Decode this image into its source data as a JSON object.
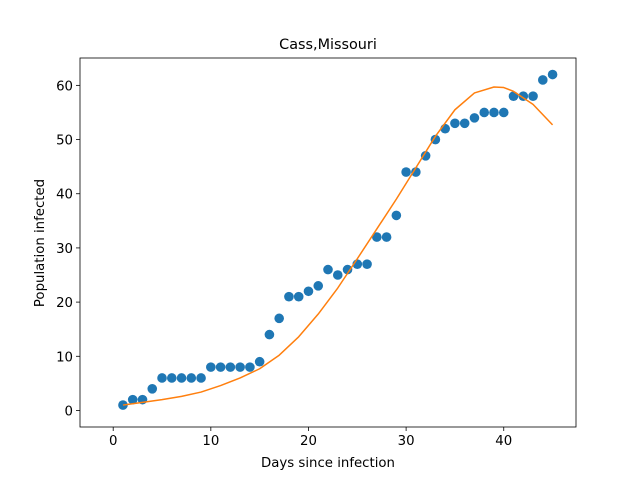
{
  "chart_data": {
    "type": "scatter",
    "title": "Cass,Missouri",
    "xlabel": "Days since infection",
    "ylabel": "Population infected",
    "xlim": [
      -3.4,
      47.4
    ],
    "ylim": [
      -3.05,
      65.05
    ],
    "xticks": [
      0,
      10,
      20,
      30,
      40
    ],
    "yticks": [
      0,
      10,
      20,
      30,
      40,
      50,
      60
    ],
    "grid": false,
    "series": [
      {
        "kind": "scatter",
        "color": "#1f77b4",
        "x": [
          1,
          2,
          3,
          4,
          5,
          6,
          7,
          8,
          9,
          10,
          11,
          12,
          13,
          14,
          15,
          16,
          17,
          18,
          19,
          20,
          21,
          22,
          23,
          24,
          25,
          26,
          27,
          28,
          29,
          30,
          31,
          32,
          33,
          34,
          35,
          36,
          37,
          38,
          39,
          40,
          41,
          42,
          43,
          44,
          45
        ],
        "y": [
          1,
          2,
          2,
          4,
          6,
          6,
          6,
          6,
          6,
          8,
          8,
          8,
          8,
          8,
          9,
          14,
          17,
          21,
          21,
          22,
          23,
          26,
          25,
          26,
          27,
          27,
          32,
          32,
          36,
          44,
          44,
          47,
          50,
          52,
          53,
          53,
          54,
          55,
          55,
          55,
          58,
          58,
          58,
          61,
          62
        ]
      },
      {
        "kind": "line",
        "color": "#ff7f0e",
        "x": [
          1,
          3,
          5,
          7,
          9,
          11,
          13,
          15,
          17,
          19,
          21,
          23,
          25,
          27,
          29,
          31,
          33,
          35,
          37,
          39,
          40,
          41,
          43,
          45
        ],
        "y": [
          1.0,
          1.5,
          2.0,
          2.6,
          3.4,
          4.6,
          6.0,
          7.7,
          10.2,
          13.6,
          17.8,
          22.6,
          28.0,
          33.5,
          39.0,
          44.8,
          50.6,
          55.5,
          58.6,
          59.7,
          59.6,
          58.9,
          56.5,
          52.7
        ]
      }
    ]
  }
}
